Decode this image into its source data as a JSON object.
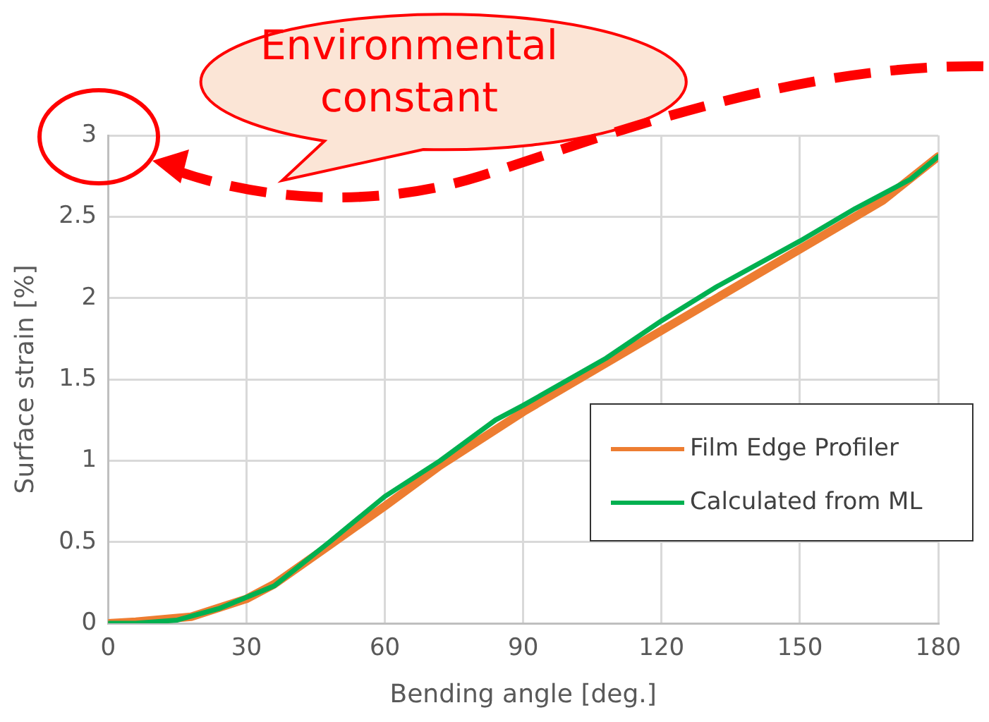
{
  "chart_data": {
    "type": "line",
    "xlabel": "Bending angle [deg.]",
    "ylabel": "Surface strain [%]",
    "annotations": [
      "Environmental constant"
    ],
    "xlim": [
      0,
      180
    ],
    "xticks": [
      0,
      30,
      60,
      90,
      120,
      150,
      180
    ],
    "ylim": [
      0,
      3
    ],
    "yticks": [
      0,
      0.5,
      1,
      1.5,
      2,
      2.5,
      3
    ],
    "grid": true,
    "legend": "bottom right",
    "marker": "none",
    "line_style": "solid",
    "series": [
      {
        "name": "Film Edge Profiler",
        "color": "#ed7d31",
        "x": [
          0,
          6,
          18,
          30,
          36,
          48,
          60,
          72,
          90,
          120,
          150,
          168,
          180
        ],
        "values": [
          0,
          0.01,
          0.04,
          0.15,
          0.24,
          0.48,
          0.72,
          0.97,
          1.3,
          1.8,
          2.3,
          2.6,
          2.87
        ]
      },
      {
        "name": "Calculated from ML",
        "color": "#00b050",
        "x": [
          0,
          6,
          15,
          24,
          36,
          48,
          60,
          72,
          84,
          90,
          108,
          120,
          132,
          150,
          162,
          174,
          180
        ],
        "values": [
          0,
          0,
          0.02,
          0.09,
          0.23,
          0.5,
          0.78,
          1.0,
          1.25,
          1.34,
          1.63,
          1.86,
          2.07,
          2.35,
          2.55,
          2.73,
          2.87
        ]
      }
    ]
  }
}
